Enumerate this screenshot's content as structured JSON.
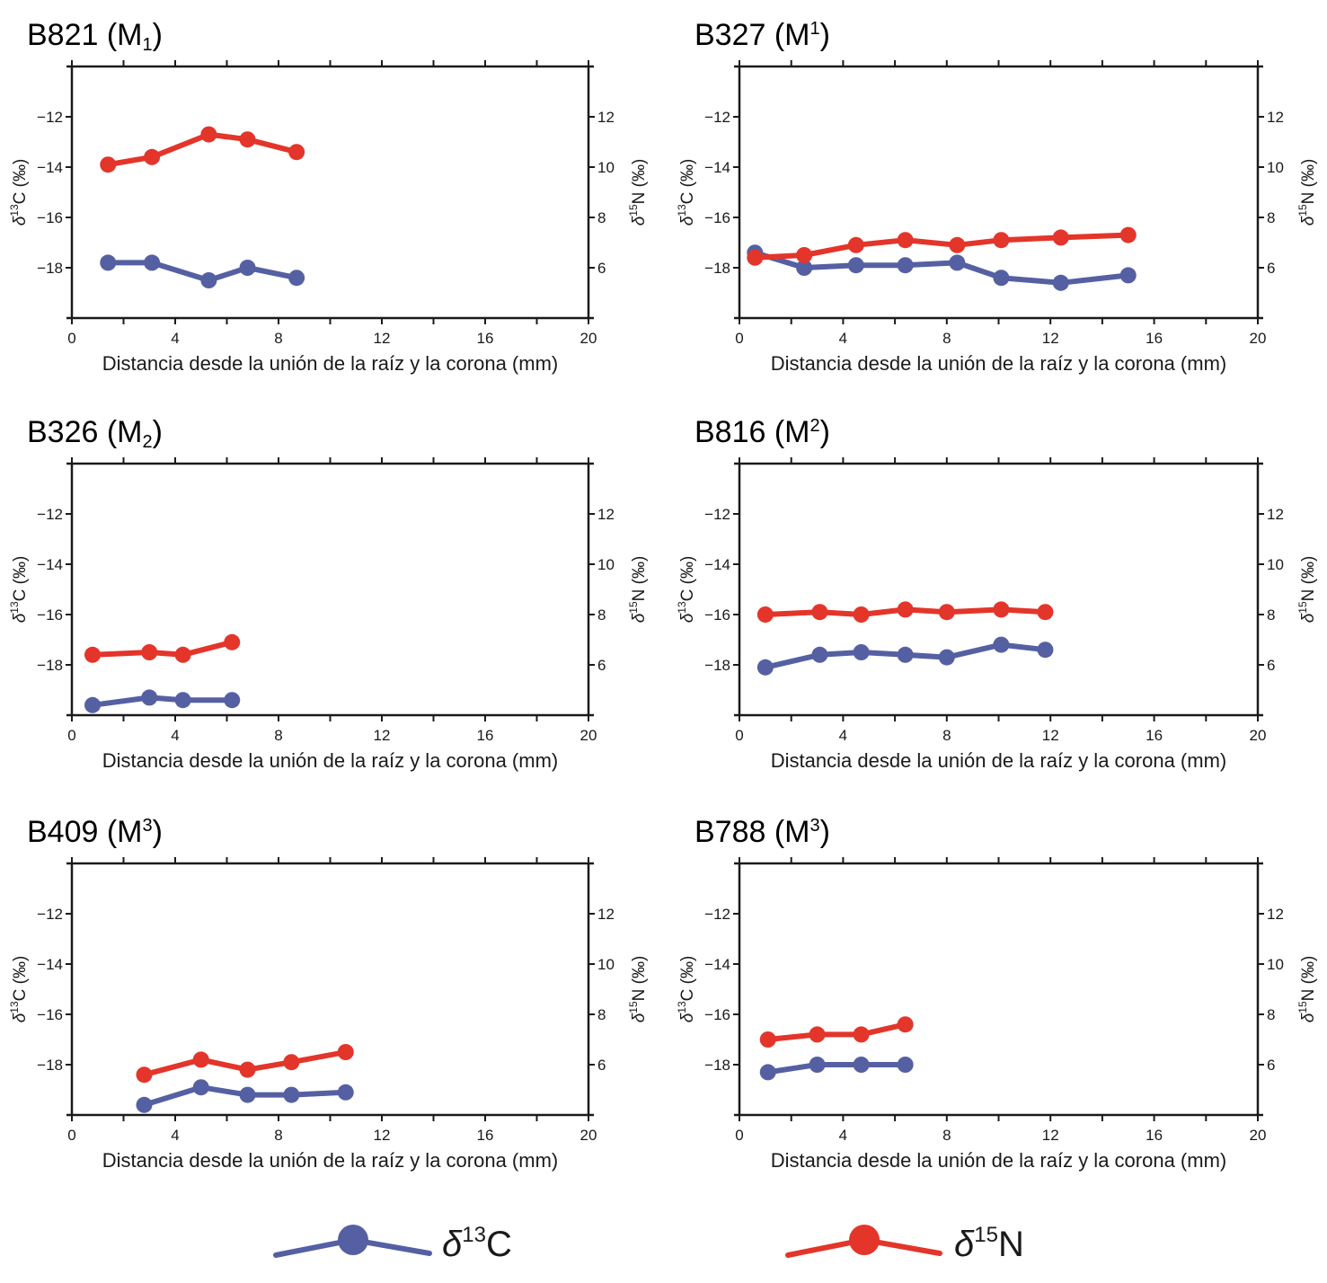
{
  "colors": {
    "c13": "#5560a3",
    "n15": "#e3352a",
    "axis": "#1a1a1a"
  },
  "legend": [
    {
      "series": "c13",
      "symbol": "δ",
      "sup": "13",
      "element": "C"
    },
    {
      "series": "n15",
      "symbol": "δ",
      "sup": "15",
      "element": "N"
    }
  ],
  "chart_data": [
    {
      "type": "line",
      "title": {
        "main": "B821 (M",
        "script": "1",
        "script_kind": "sub",
        "close": ")"
      },
      "xlabel": "Distancia desde la unión de la raíz y la corona (mm)",
      "ylabel_left": {
        "symbol": "δ",
        "sup": "13",
        "rest": "C (‰)"
      },
      "ylabel_right": {
        "symbol": "δ",
        "sup": "15",
        "rest": "N (‰)"
      },
      "xlim": [
        0,
        20
      ],
      "xticks": [
        0,
        4,
        8,
        12,
        16,
        20
      ],
      "ylim_left": [
        -20,
        -10
      ],
      "yticks_left": [
        -12,
        -14,
        -16,
        -18
      ],
      "ylim_right": [
        4,
        14
      ],
      "yticks_right": [
        12,
        10,
        8,
        6
      ],
      "series": [
        {
          "name": "δ13C",
          "key": "c13",
          "axis": "left",
          "x": [
            1.4,
            3.1,
            5.3,
            6.8,
            8.7
          ],
          "y": [
            -17.8,
            -17.8,
            -18.5,
            -18.0,
            -18.4
          ]
        },
        {
          "name": "δ15N",
          "key": "n15",
          "axis": "right",
          "x": [
            1.4,
            3.1,
            5.3,
            6.8,
            8.7
          ],
          "y": [
            10.1,
            10.4,
            11.3,
            11.1,
            10.6
          ]
        }
      ]
    },
    {
      "type": "line",
      "title": {
        "main": "B327 (M",
        "script": "1",
        "script_kind": "sup",
        "close": ")"
      },
      "xlabel": "Distancia desde la unión de la raíz y la corona (mm)",
      "ylabel_left": {
        "symbol": "δ",
        "sup": "13",
        "rest": "C (‰)"
      },
      "ylabel_right": {
        "symbol": "δ",
        "sup": "15",
        "rest": "N (‰)"
      },
      "xlim": [
        0,
        20
      ],
      "xticks": [
        0,
        4,
        8,
        12,
        16,
        20
      ],
      "ylim_left": [
        -20,
        -10
      ],
      "yticks_left": [
        -12,
        -14,
        -16,
        -18
      ],
      "ylim_right": [
        4,
        14
      ],
      "yticks_right": [
        12,
        10,
        8,
        6
      ],
      "series": [
        {
          "name": "δ13C",
          "key": "c13",
          "axis": "left",
          "x": [
            0.6,
            2.5,
            4.5,
            6.4,
            8.4,
            10.1,
            12.4,
            15.0
          ],
          "y": [
            -17.4,
            -18.0,
            -17.9,
            -17.9,
            -17.8,
            -18.4,
            -18.6,
            -18.3
          ]
        },
        {
          "name": "δ15N",
          "key": "n15",
          "axis": "right",
          "x": [
            0.6,
            2.5,
            4.5,
            6.4,
            8.4,
            10.1,
            12.4,
            15.0
          ],
          "y": [
            6.4,
            6.5,
            6.9,
            7.1,
            6.9,
            7.1,
            7.2,
            7.3
          ]
        }
      ]
    },
    {
      "type": "line",
      "title": {
        "main": "B326 (M",
        "script": "2",
        "script_kind": "sub",
        "close": ")"
      },
      "xlabel": "Distancia desde la unión de la raíz y la corona (mm)",
      "ylabel_left": {
        "symbol": "δ",
        "sup": "13",
        "rest": "C (‰)"
      },
      "ylabel_right": {
        "symbol": "δ",
        "sup": "15",
        "rest": "N (‰)"
      },
      "xlim": [
        0,
        20
      ],
      "xticks": [
        0,
        4,
        8,
        12,
        16,
        20
      ],
      "ylim_left": [
        -20,
        -10
      ],
      "yticks_left": [
        -12,
        -14,
        -16,
        -18
      ],
      "ylim_right": [
        4,
        14
      ],
      "yticks_right": [
        12,
        10,
        8,
        6
      ],
      "series": [
        {
          "name": "δ13C",
          "key": "c13",
          "axis": "left",
          "x": [
            0.8,
            3.0,
            4.3,
            6.2
          ],
          "y": [
            -19.6,
            -19.3,
            -19.4,
            -19.4
          ]
        },
        {
          "name": "δ15N",
          "key": "n15",
          "axis": "right",
          "x": [
            0.8,
            3.0,
            4.3,
            6.2
          ],
          "y": [
            6.4,
            6.5,
            6.4,
            6.9
          ]
        }
      ]
    },
    {
      "type": "line",
      "title": {
        "main": "B816 (M",
        "script": "2",
        "script_kind": "sup",
        "close": ")"
      },
      "xlabel": "Distancia desde la unión de la raíz y la corona (mm)",
      "ylabel_left": {
        "symbol": "δ",
        "sup": "13",
        "rest": "C (‰)"
      },
      "ylabel_right": {
        "symbol": "δ",
        "sup": "15",
        "rest": "N (‰)"
      },
      "xlim": [
        0,
        20
      ],
      "xticks": [
        0,
        4,
        8,
        12,
        16,
        20
      ],
      "ylim_left": [
        -20,
        -10
      ],
      "yticks_left": [
        -12,
        -14,
        -16,
        -18
      ],
      "ylim_right": [
        4,
        14
      ],
      "yticks_right": [
        12,
        10,
        8,
        6
      ],
      "series": [
        {
          "name": "δ13C",
          "key": "c13",
          "axis": "left",
          "x": [
            1.0,
            3.1,
            4.7,
            6.4,
            8.0,
            10.1,
            11.8
          ],
          "y": [
            -18.1,
            -17.6,
            -17.5,
            -17.6,
            -17.7,
            -17.2,
            -17.4
          ]
        },
        {
          "name": "δ15N",
          "key": "n15",
          "axis": "right",
          "x": [
            1.0,
            3.1,
            4.7,
            6.4,
            8.0,
            10.1,
            11.8
          ],
          "y": [
            8.0,
            8.1,
            8.0,
            8.2,
            8.1,
            8.2,
            8.1
          ]
        }
      ]
    },
    {
      "type": "line",
      "title": {
        "main": "B409 (M",
        "script": "3",
        "script_kind": "sup",
        "close": ")"
      },
      "xlabel": "Distancia desde la unión de la raíz y la corona (mm)",
      "ylabel_left": {
        "symbol": "δ",
        "sup": "13",
        "rest": "C (‰)"
      },
      "ylabel_right": {
        "symbol": "δ",
        "sup": "15",
        "rest": "N (‰)"
      },
      "xlim": [
        0,
        20
      ],
      "xticks": [
        0,
        4,
        8,
        12,
        16,
        20
      ],
      "ylim_left": [
        -20,
        -10
      ],
      "yticks_left": [
        -12,
        -14,
        -16,
        -18
      ],
      "ylim_right": [
        4,
        14
      ],
      "yticks_right": [
        12,
        10,
        8,
        6
      ],
      "series": [
        {
          "name": "δ13C",
          "key": "c13",
          "axis": "left",
          "x": [
            2.8,
            5.0,
            6.8,
            8.5,
            10.6
          ],
          "y": [
            -19.6,
            -18.9,
            -19.2,
            -19.2,
            -19.1
          ]
        },
        {
          "name": "δ15N",
          "key": "n15",
          "axis": "right",
          "x": [
            2.8,
            5.0,
            6.8,
            8.5,
            10.6
          ],
          "y": [
            5.6,
            6.2,
            5.8,
            6.1,
            6.5
          ]
        }
      ]
    },
    {
      "type": "line",
      "title": {
        "main": "B788 (M",
        "script": "3",
        "script_kind": "sup",
        "close": ")"
      },
      "xlabel": "Distancia desde la unión de la raíz y la corona (mm)",
      "ylabel_left": {
        "symbol": "δ",
        "sup": "13",
        "rest": "C (‰)"
      },
      "ylabel_right": {
        "symbol": "δ",
        "sup": "15",
        "rest": "N (‰)"
      },
      "xlim": [
        0,
        20
      ],
      "xticks": [
        0,
        4,
        8,
        12,
        16,
        20
      ],
      "ylim_left": [
        -20,
        -10
      ],
      "yticks_left": [
        -12,
        -14,
        -16,
        -18
      ],
      "ylim_right": [
        4,
        14
      ],
      "yticks_right": [
        12,
        10,
        8,
        6
      ],
      "series": [
        {
          "name": "δ13C",
          "key": "c13",
          "axis": "left",
          "x": [
            1.1,
            3.0,
            4.7,
            6.4
          ],
          "y": [
            -18.3,
            -18.0,
            -18.0,
            -18.0
          ]
        },
        {
          "name": "δ15N",
          "key": "n15",
          "axis": "right",
          "x": [
            1.1,
            3.0,
            4.7,
            6.4
          ],
          "y": [
            7.0,
            7.2,
            7.2,
            7.6
          ]
        }
      ]
    }
  ]
}
